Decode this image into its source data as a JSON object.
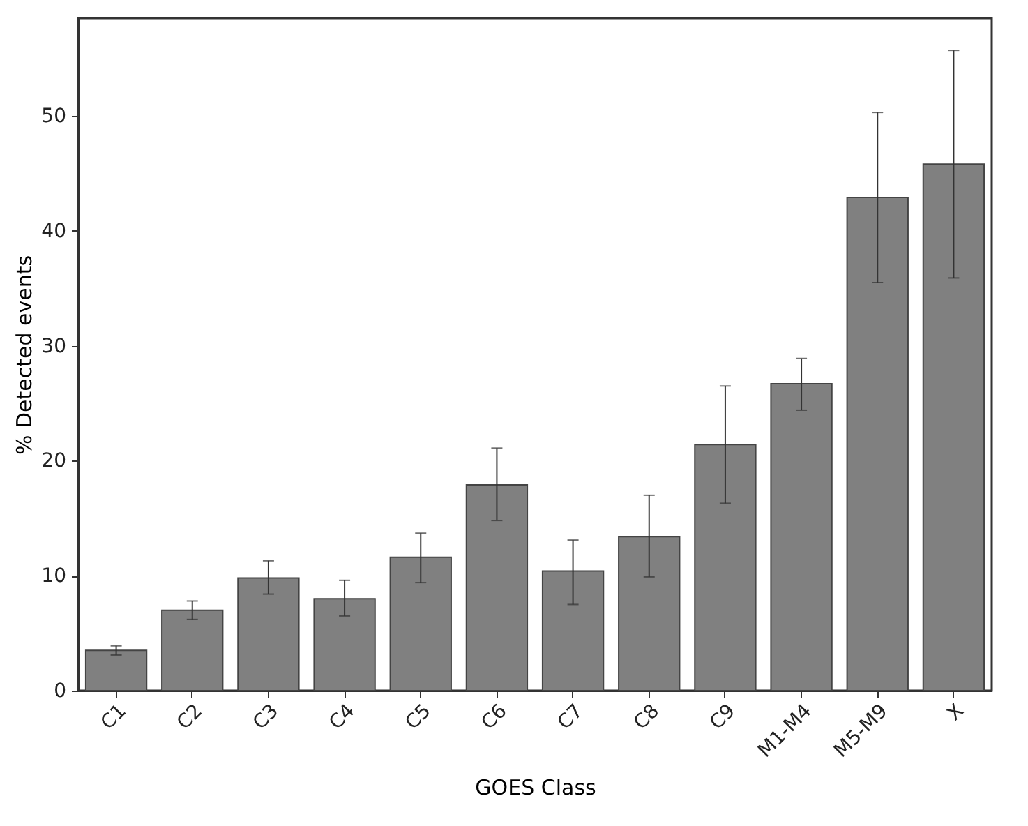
{
  "chart_data": {
    "type": "bar",
    "xlabel": "GOES Class",
    "ylabel": "% Detected events",
    "categories": [
      "C1",
      "C2",
      "C3",
      "C4",
      "C5",
      "C6",
      "C7",
      "C8",
      "C9",
      "M1-M4",
      "M5-M9",
      "X"
    ],
    "values": [
      3.5,
      7.0,
      9.8,
      8.0,
      11.6,
      17.9,
      10.4,
      13.4,
      21.4,
      26.7,
      42.9,
      45.8
    ],
    "errors": [
      [
        3.1,
        3.9
      ],
      [
        6.2,
        7.8
      ],
      [
        8.4,
        11.3
      ],
      [
        6.5,
        9.6
      ],
      [
        9.4,
        13.7
      ],
      [
        14.8,
        21.1
      ],
      [
        7.5,
        13.1
      ],
      [
        9.9,
        17.0
      ],
      [
        16.3,
        26.5
      ],
      [
        24.4,
        28.9
      ],
      [
        35.5,
        50.3
      ],
      [
        35.9,
        55.7
      ]
    ],
    "color": "#808080",
    "ylim": [
      0,
      58.5
    ],
    "yticks": [
      0,
      10,
      20,
      30,
      40,
      50
    ]
  }
}
